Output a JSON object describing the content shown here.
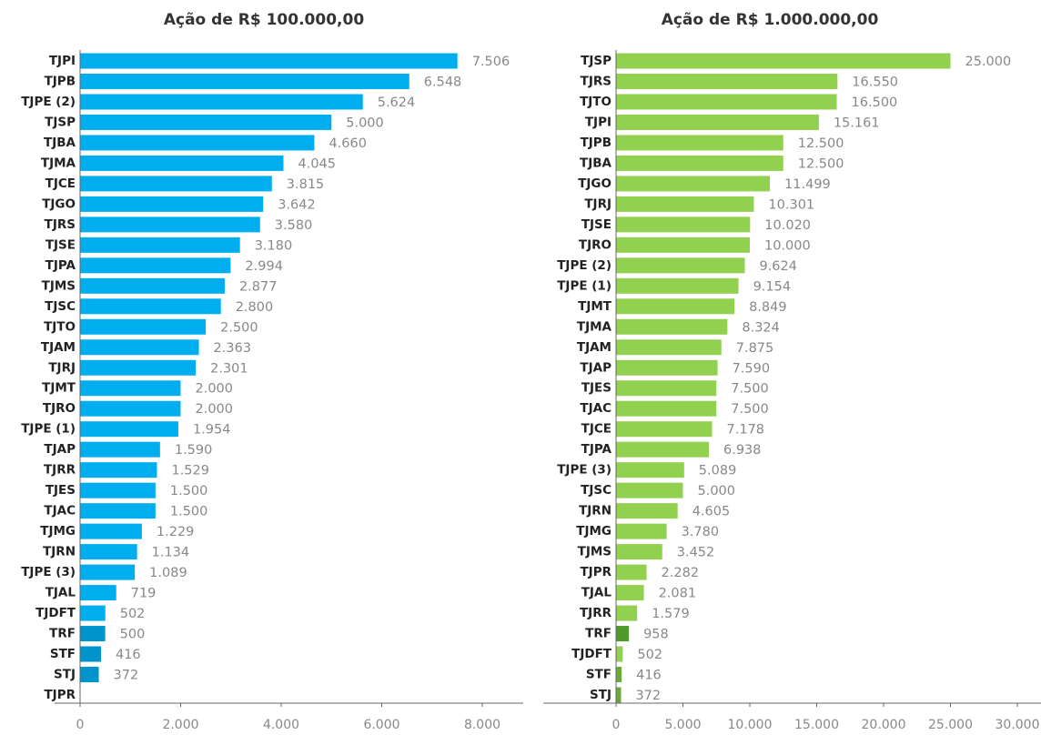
{
  "chart_data": [
    {
      "type": "bar",
      "orientation": "horizontal",
      "title": "Ação de R$ 100.000,00",
      "categories": [
        "TJPI",
        "TJPB",
        "TJPE (2)",
        "TJSP",
        "TJBA",
        "TJMA",
        "TJCE",
        "TJGO",
        "TJRS",
        "TJSE",
        "TJPA",
        "TJMS",
        "TJSC",
        "TJTO",
        "TJAM",
        "TJRJ",
        "TJMT",
        "TJRO",
        "TJPE (1)",
        "TJAP",
        "TJRR",
        "TJES",
        "TJAC",
        "TJMG",
        "TJRN",
        "TJPE (3)",
        "TJAL",
        "TJDFT",
        "TRF",
        "STF",
        "STJ",
        "TJPR"
      ],
      "values": [
        7506,
        6548,
        5624,
        5000,
        4660,
        4045,
        3815,
        3642,
        3580,
        3180,
        2994,
        2877,
        2800,
        2500,
        2363,
        2301,
        2000,
        2000,
        1954,
        1590,
        1529,
        1500,
        1500,
        1229,
        1134,
        1089,
        719,
        502,
        500,
        416,
        372,
        null
      ],
      "value_labels": [
        "7.506",
        "6.548",
        "5.624",
        "5.000",
        "4.660",
        "4.045",
        "3.815",
        "3.642",
        "3.580",
        "3.180",
        "2.994",
        "2.877",
        "2.800",
        "2.500",
        "2.363",
        "2.301",
        "2.000",
        "2.000",
        "1.954",
        "1.590",
        "1.529",
        "1.500",
        "1.500",
        "1.229",
        "1.134",
        "1.089",
        "719",
        "502",
        "500",
        "416",
        "372",
        null
      ],
      "colors": [
        "#00aeef",
        "#00aeef",
        "#00aeef",
        "#00aeef",
        "#00aeef",
        "#00aeef",
        "#00aeef",
        "#00aeef",
        "#00aeef",
        "#00aeef",
        "#00aeef",
        "#00aeef",
        "#00aeef",
        "#00aeef",
        "#00aeef",
        "#00aeef",
        "#00aeef",
        "#00aeef",
        "#00aeef",
        "#00aeef",
        "#00aeef",
        "#00aeef",
        "#00aeef",
        "#00aeef",
        "#00aeef",
        "#00aeef",
        "#00aeef",
        "#00aeef",
        "#0094cc",
        "#0094cc",
        "#0094cc",
        "#00aeef"
      ],
      "xlim": [
        0,
        8000
      ],
      "xticks": [
        0,
        {
          "value": 2000,
          "label": "2.000"
        },
        {
          "value": 4000,
          "label": "4.000"
        },
        {
          "value": 6000,
          "label": "6.000"
        },
        {
          "value": 8000,
          "label": "8.000"
        }
      ]
    },
    {
      "type": "bar",
      "orientation": "horizontal",
      "title": "Ação de R$ 1.000.000,00",
      "categories": [
        "TJSP",
        "TJRS",
        "TJTO",
        "TJPI",
        "TJPB",
        "TJBA",
        "TJGO",
        "TJRJ",
        "TJSE",
        "TJRO",
        "TJPE (2)",
        "TJPE (1)",
        "TJMT",
        "TJMA",
        "TJAM",
        "TJAP",
        "TJES",
        "TJAC",
        "TJCE",
        "TJPA",
        "TJPE (3)",
        "TJSC",
        "TJRN",
        "TJMG",
        "TJMS",
        "TJPR",
        "TJAL",
        "TJRR",
        "TRF",
        "TJDFT",
        "STF",
        "STJ"
      ],
      "values": [
        25000,
        16550,
        16500,
        15161,
        12500,
        12500,
        11499,
        10301,
        10020,
        10000,
        9624,
        9154,
        8849,
        8324,
        7875,
        7590,
        7500,
        7500,
        7178,
        6938,
        5089,
        5000,
        4605,
        3780,
        3452,
        2282,
        2081,
        1579,
        958,
        502,
        416,
        372
      ],
      "value_labels": [
        "25.000",
        "16.550",
        "16.500",
        "15.161",
        "12.500",
        "12.500",
        "11.499",
        "10.301",
        "10.020",
        "10.000",
        "9.624",
        "9.154",
        "8.849",
        "8.324",
        "7.875",
        "7.590",
        "7.500",
        "7.500",
        "7.178",
        "6.938",
        "5.089",
        "5.000",
        "4.605",
        "3.780",
        "3.452",
        "2.282",
        "2.081",
        "1.579",
        "958",
        "502",
        "416",
        "372"
      ],
      "colors": [
        "#92d050",
        "#92d050",
        "#92d050",
        "#92d050",
        "#92d050",
        "#92d050",
        "#92d050",
        "#92d050",
        "#92d050",
        "#92d050",
        "#92d050",
        "#92d050",
        "#92d050",
        "#92d050",
        "#92d050",
        "#92d050",
        "#92d050",
        "#92d050",
        "#92d050",
        "#92d050",
        "#92d050",
        "#92d050",
        "#92d050",
        "#92d050",
        "#92d050",
        "#92d050",
        "#92d050",
        "#92d050",
        "#4e9a2a",
        "#92d050",
        "#6aa83a",
        "#6aa83a"
      ],
      "xlim": [
        0,
        30000
      ],
      "xticks": [
        0,
        {
          "value": 5000,
          "label": "5.000"
        },
        {
          "value": 10000,
          "label": "10.000"
        },
        {
          "value": 15000,
          "label": "15.000"
        },
        {
          "value": 20000,
          "label": "20.000"
        },
        {
          "value": 25000,
          "label": "25.000"
        },
        {
          "value": 30000,
          "label": "30.000"
        }
      ]
    }
  ]
}
